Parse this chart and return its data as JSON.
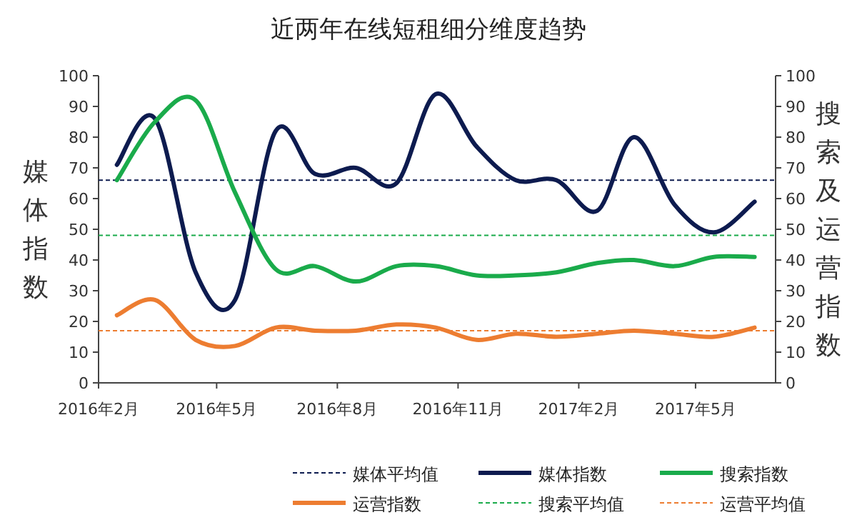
{
  "chart_data": {
    "type": "line",
    "title": "近两年在线短租细分维度趋势",
    "ylabel": "媒体指数",
    "y2label": "搜索及运营指数",
    "x": [
      "2016-02-15",
      "2016-03-15",
      "2016-04-15",
      "2016-05-15",
      "2016-06-15",
      "2016-07-15",
      "2016-08-15",
      "2016-09-15",
      "2016-10-15",
      "2016-11-15",
      "2016-12-15",
      "2017-01-15",
      "2017-02-15",
      "2017-03-15",
      "2017-04-15",
      "2017-05-15",
      "2017-06-15"
    ],
    "xlim": [
      "2016-02-01",
      "2017-07-01"
    ],
    "xticks": [
      {
        "value": "2016-02-01",
        "label": "2016年2月"
      },
      {
        "value": "2016-05-01",
        "label": "2016年5月"
      },
      {
        "value": "2016-08-01",
        "label": "2016年8月"
      },
      {
        "value": "2016-11-01",
        "label": "2016年11月"
      },
      {
        "value": "2017-02-01",
        "label": "2017年2月"
      },
      {
        "value": "2017-05-01",
        "label": "2017年5月"
      }
    ],
    "ylim": [
      0,
      100
    ],
    "yticks": [
      0,
      10,
      20,
      30,
      40,
      50,
      60,
      70,
      80,
      90,
      100
    ],
    "y2lim": [
      0,
      100
    ],
    "y2ticks": [
      0,
      10,
      20,
      30,
      40,
      50,
      60,
      70,
      80,
      90,
      100
    ],
    "series": [
      {
        "name": "媒体指数",
        "color": "#0d1b4f",
        "values": [
          71,
          86,
          36,
          27,
          82,
          68,
          70,
          65,
          94,
          77,
          66,
          66,
          56,
          80,
          58,
          49,
          59
        ]
      },
      {
        "name": "搜索指数",
        "color": "#1aab4b",
        "values": [
          66,
          85,
          92,
          62,
          37,
          38,
          33,
          38,
          38,
          35,
          35,
          36,
          39,
          40,
          38,
          41,
          41
        ]
      },
      {
        "name": "运营指数",
        "color": "#ed7d31",
        "values": [
          22,
          27,
          14,
          12,
          18,
          17,
          17,
          19,
          18,
          14,
          16,
          15,
          16,
          17,
          16,
          15,
          18
        ]
      }
    ],
    "ref_lines": [
      {
        "axis": "y",
        "value": 66,
        "label": "媒体平均值",
        "color": "#0d1b4f",
        "line_style": "dashed"
      },
      {
        "axis": "y",
        "value": 48,
        "label": "搜索平均值",
        "color": "#1aab4b",
        "line_style": "dashed"
      },
      {
        "axis": "y",
        "value": 17,
        "label": "运营平均值",
        "color": "#ed7d31",
        "line_style": "dashed"
      }
    ],
    "grid": false,
    "legend": "bottom",
    "marker": "none",
    "line_style": "solid"
  }
}
